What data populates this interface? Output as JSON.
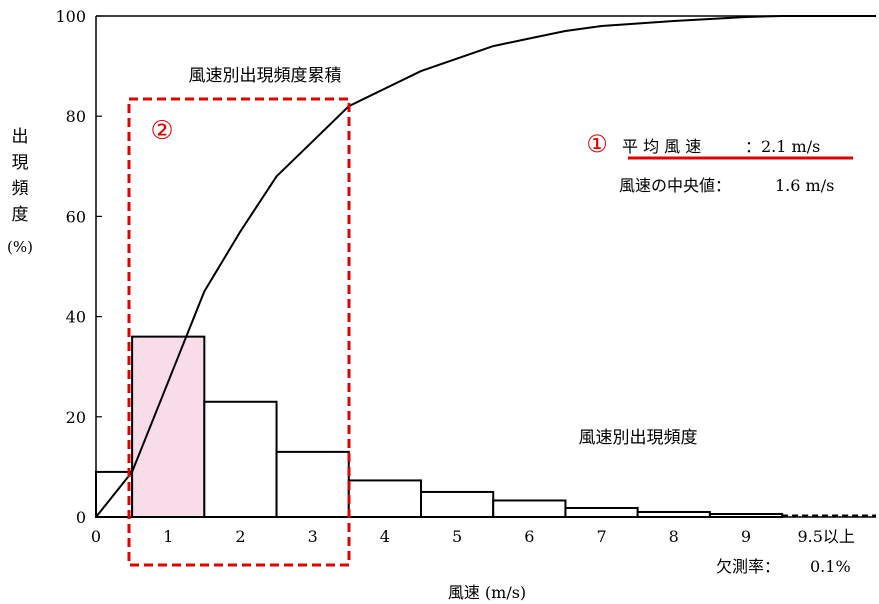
{
  "chart_data": {
    "type": "bar",
    "ylabel_chars": [
      "出",
      "現",
      "頻",
      "度"
    ],
    "ylabel_unit": "(%)",
    "xlabel": "風速 (m/s)",
    "ylim": [
      0,
      100
    ],
    "yticks": [
      "0",
      "20",
      "40",
      "60",
      "80",
      "100"
    ],
    "ytick_values": [
      0,
      20,
      40,
      60,
      80,
      100
    ],
    "xticks": [
      {
        "label": "0",
        "x": 0
      },
      {
        "label": "1",
        "x": 1
      },
      {
        "label": "2",
        "x": 2
      },
      {
        "label": "3",
        "x": 3
      },
      {
        "label": "4",
        "x": 4
      },
      {
        "label": "5",
        "x": 5
      },
      {
        "label": "6",
        "x": 6
      },
      {
        "label": "7",
        "x": 7
      },
      {
        "label": "8",
        "x": 8
      },
      {
        "label": "9",
        "x": 9
      },
      {
        "label": "9.5以上",
        "x": 10
      }
    ],
    "xlim": [
      0,
      10.8
    ],
    "bars": [
      {
        "x0": 0,
        "x1": 0.5,
        "value": 9
      },
      {
        "x0": 0.5,
        "x1": 1.5,
        "value": 36,
        "highlight": true
      },
      {
        "x0": 1.5,
        "x1": 2.5,
        "value": 23
      },
      {
        "x0": 2.5,
        "x1": 3.5,
        "value": 13
      },
      {
        "x0": 3.5,
        "x1": 4.5,
        "value": 7.3
      },
      {
        "x0": 4.5,
        "x1": 5.5,
        "value": 5
      },
      {
        "x0": 5.5,
        "x1": 6.5,
        "value": 3.3
      },
      {
        "x0": 6.5,
        "x1": 7.5,
        "value": 1.8
      },
      {
        "x0": 7.5,
        "x1": 8.5,
        "value": 1
      },
      {
        "x0": 8.5,
        "x1": 9.5,
        "value": 0.6
      },
      {
        "x0": 9.5,
        "x1": 10.8,
        "value": 0.3
      }
    ],
    "cumulative": {
      "name": "風速別出現頻度累積",
      "x": [
        0,
        0.5,
        1.0,
        1.5,
        2.0,
        2.5,
        3.0,
        3.5,
        4.0,
        4.5,
        5.0,
        5.5,
        6.0,
        6.5,
        7.0,
        7.5,
        8.0,
        8.5,
        9.0,
        9.5,
        10.8
      ],
      "y": [
        0,
        9,
        27,
        45,
        57,
        68,
        75,
        82,
        85.5,
        89,
        91.5,
        94,
        95.5,
        97,
        98,
        98.5,
        99,
        99.4,
        99.8,
        100,
        100
      ]
    },
    "bar_series_name": "風速別出現頻度",
    "highlight_color": "#f8dce8",
    "bar_edge_color": "#000000",
    "annotation_color": "#e00000"
  },
  "annotations": {
    "circle1": "①",
    "circle2": "②",
    "mean_label": "平 均 風 速",
    "mean_value": "：2.1 m/s",
    "median_label": "風速の中央値：",
    "median_value": "1.6 m/s",
    "missing_label": "欠測率：",
    "missing_value": "0.1%"
  }
}
